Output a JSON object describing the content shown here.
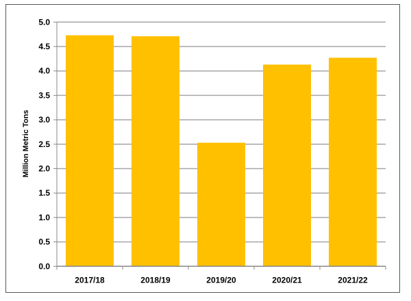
{
  "chart_data": {
    "type": "bar",
    "categories": [
      "2017/18",
      "2018/19",
      "2019/20",
      "2020/21",
      "2021/22"
    ],
    "values": [
      4.73,
      4.71,
      2.53,
      4.13,
      4.27
    ],
    "title": "",
    "xlabel": "",
    "ylabel": "Million Metric Tons",
    "ylim": [
      0,
      5.0
    ],
    "yticks": [
      "0.0",
      "0.5",
      "1.0",
      "1.5",
      "2.0",
      "2.5",
      "3.0",
      "3.5",
      "4.0",
      "4.5",
      "5.0"
    ],
    "grid": true,
    "legend": "none",
    "bar_color": "#FFC000",
    "grid_color": "#A6A6A6"
  }
}
